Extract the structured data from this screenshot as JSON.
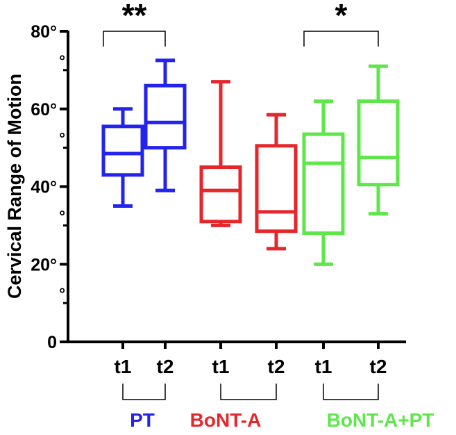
{
  "chart_data": {
    "type": "box",
    "ylabel": "Cervical Range of Motion",
    "ylim": [
      0,
      80
    ],
    "yticks": [
      "0",
      "20°",
      "40°",
      "60°",
      "80°"
    ],
    "minor_tick_marks": [
      "°",
      "°",
      "°",
      "°"
    ],
    "grid": false,
    "legend": "none",
    "boxes": [
      {
        "group": "PT",
        "label": "t1",
        "color": "#2323ee",
        "min": 35,
        "q1": 43,
        "median": 48.5,
        "q3": 55.5,
        "max": 60
      },
      {
        "group": "PT",
        "label": "t2",
        "color": "#2323ee",
        "min": 39,
        "q1": 50,
        "median": 56.5,
        "q3": 66,
        "max": 72.5
      },
      {
        "group": "BoNT-A",
        "label": "t1",
        "color": "#e5262b",
        "min": 30,
        "q1": 31,
        "median": 39,
        "q3": 45,
        "max": 67
      },
      {
        "group": "BoNT-A",
        "label": "t2",
        "color": "#e5262b",
        "min": 24,
        "q1": 28.5,
        "median": 33.5,
        "q3": 50.5,
        "max": 58.5
      },
      {
        "group": "BoNT-A+PT",
        "label": "t1",
        "color": "#5ee64a",
        "min": 20,
        "q1": 28,
        "median": 46,
        "q3": 53.5,
        "max": 62
      },
      {
        "group": "BoNT-A+PT",
        "label": "t2",
        "color": "#5ee64a",
        "min": 33,
        "q1": 40.5,
        "median": 47.5,
        "q3": 62,
        "max": 71
      }
    ],
    "groups": [
      {
        "name": "PT",
        "color": "#2323ee"
      },
      {
        "name": "BoNT-A",
        "color": "#e5262b"
      },
      {
        "name": "BoNT-A+PT",
        "color": "#5ee64a"
      }
    ],
    "significance": [
      {
        "pair": [
          0,
          1
        ],
        "label": "**"
      },
      {
        "pair": [
          4,
          5
        ],
        "label": "*"
      }
    ]
  }
}
